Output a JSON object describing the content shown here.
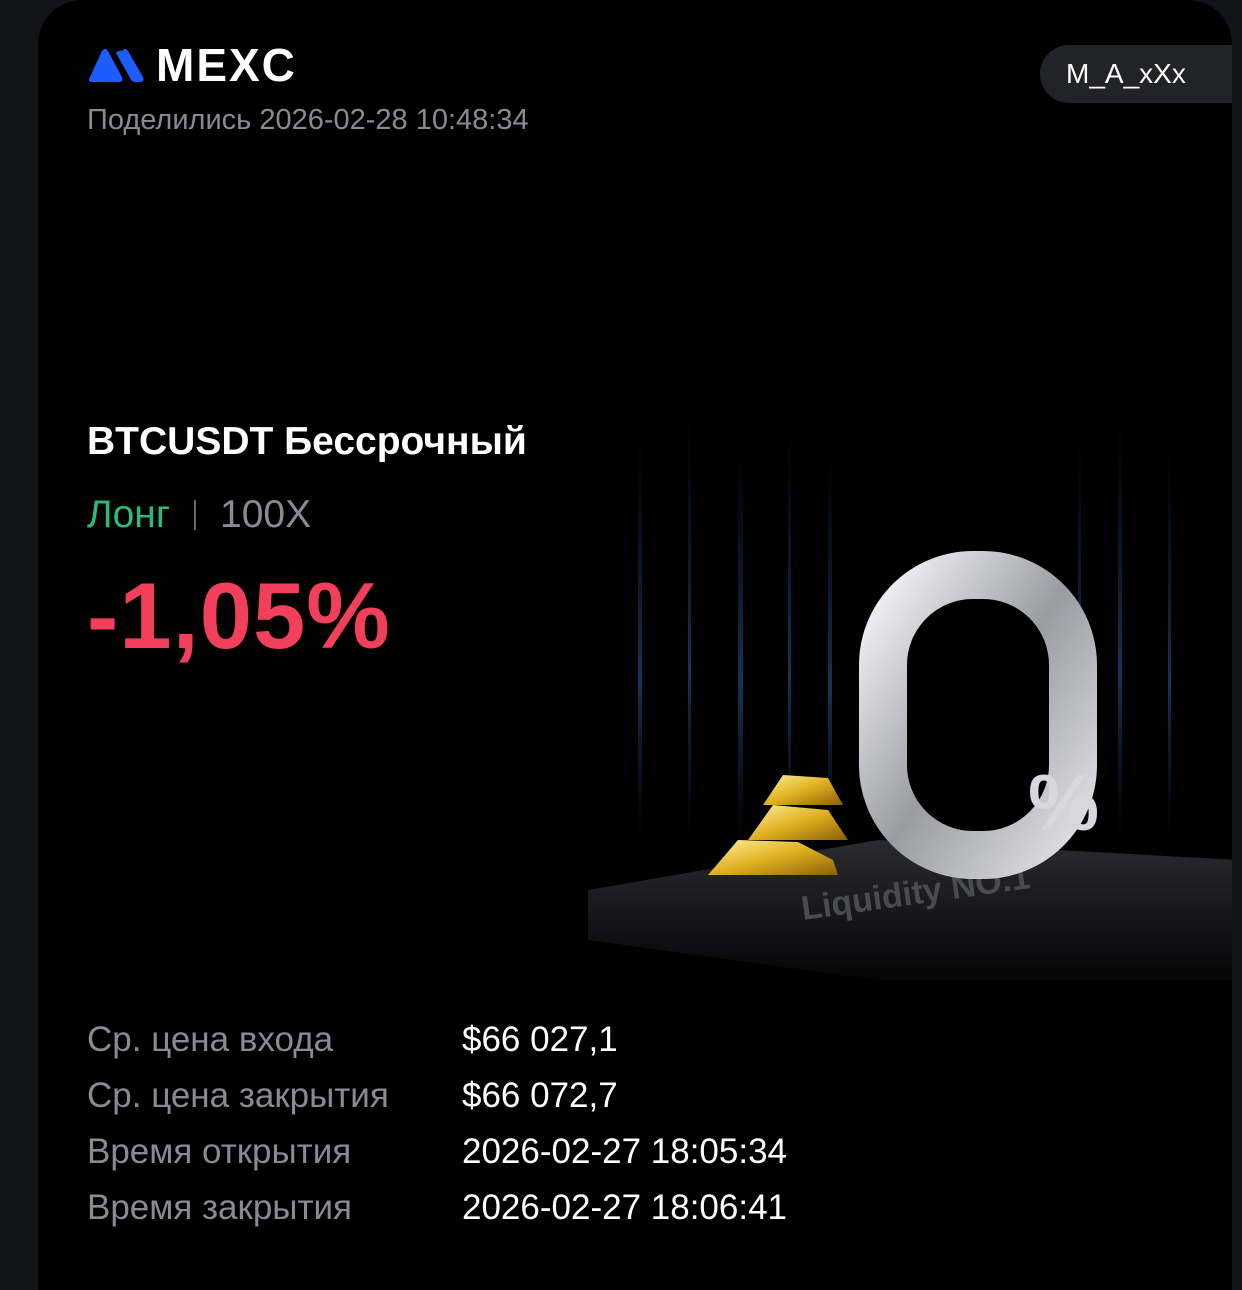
{
  "brand": {
    "name": "MEXC",
    "accent": "#1e5cff"
  },
  "shared_at": "Поделились 2026-02-28 10:48:34",
  "username": "M_A_xXx",
  "position": {
    "pair": "BTCUSDT Бессрочный",
    "side": "Лонг",
    "leverage": "100X",
    "pnl_percent": "-1,05%",
    "colors": {
      "long": "#2db87d",
      "loss": "#f3405a"
    }
  },
  "promo": {
    "big_text": "0",
    "percent": "%",
    "tagline": "Liquidity NO.1"
  },
  "details": [
    {
      "label": "Ср. цена входа",
      "value": "$66 027,1"
    },
    {
      "label": "Ср. цена закрытия",
      "value": "$66 072,7"
    },
    {
      "label": "Время открытия",
      "value": "2026-02-27 18:05:34"
    },
    {
      "label": "Время закрытия",
      "value": "2026-02-27 18:06:41"
    }
  ]
}
